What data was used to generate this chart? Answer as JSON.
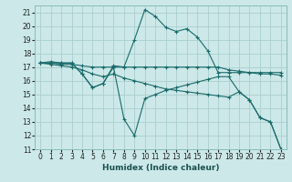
{
  "xlabel": "Humidex (Indice chaleur)",
  "xlim": [
    -0.5,
    23.5
  ],
  "ylim": [
    11,
    21.5
  ],
  "yticks": [
    11,
    12,
    13,
    14,
    15,
    16,
    17,
    18,
    19,
    20,
    21
  ],
  "xticks": [
    0,
    1,
    2,
    3,
    4,
    5,
    6,
    7,
    8,
    9,
    10,
    11,
    12,
    13,
    14,
    15,
    16,
    17,
    18,
    19,
    20,
    21,
    22,
    23
  ],
  "bg_color": "#cce8e8",
  "grid_color": "#aacece",
  "line_color": "#1a6a6a",
  "lines": [
    {
      "x": [
        0,
        1,
        2,
        3,
        4,
        5,
        6,
        7,
        8,
        9,
        10,
        11,
        12,
        13,
        14,
        15,
        16,
        17,
        18,
        19,
        20,
        21,
        22,
        23
      ],
      "y": [
        17.3,
        17.4,
        17.3,
        17.3,
        16.5,
        15.5,
        15.8,
        17.1,
        17.0,
        19.0,
        21.2,
        20.7,
        19.9,
        19.6,
        19.8,
        19.2,
        18.2,
        16.6,
        16.6,
        16.6,
        16.6,
        16.6,
        16.6,
        16.6
      ]
    },
    {
      "x": [
        0,
        1,
        2,
        3,
        4,
        5,
        6,
        7,
        8,
        9,
        10,
        11,
        12,
        13,
        14,
        15,
        16,
        17,
        18,
        19,
        20,
        21,
        22,
        23
      ],
      "y": [
        17.3,
        17.3,
        17.2,
        17.2,
        17.1,
        17.0,
        17.0,
        17.0,
        17.0,
        17.0,
        17.0,
        17.0,
        17.0,
        17.0,
        17.0,
        17.0,
        17.0,
        17.0,
        16.8,
        16.7,
        16.6,
        16.5,
        16.5,
        16.4
      ]
    },
    {
      "x": [
        0,
        1,
        2,
        3,
        4,
        5,
        6,
        7,
        8,
        9,
        10,
        11,
        12,
        13,
        14,
        15,
        16,
        17,
        18,
        19,
        20,
        21,
        22,
        23
      ],
      "y": [
        17.3,
        17.2,
        17.1,
        17.0,
        16.8,
        16.5,
        16.3,
        16.5,
        16.2,
        16.0,
        15.8,
        15.6,
        15.4,
        15.3,
        15.2,
        15.1,
        15.0,
        14.9,
        14.8,
        15.2,
        14.6,
        13.3,
        13.0,
        11.0
      ]
    },
    {
      "x": [
        0,
        1,
        2,
        3,
        4,
        5,
        6,
        7,
        8,
        9,
        10,
        11,
        12,
        13,
        14,
        15,
        16,
        17,
        18,
        19,
        20,
        21,
        22,
        23
      ],
      "y": [
        17.3,
        17.3,
        17.3,
        17.3,
        16.5,
        15.5,
        15.8,
        17.0,
        13.2,
        12.0,
        14.7,
        15.0,
        15.3,
        15.5,
        15.7,
        15.9,
        16.1,
        16.3,
        16.3,
        15.2,
        14.6,
        13.3,
        13.0,
        11.0
      ]
    }
  ]
}
